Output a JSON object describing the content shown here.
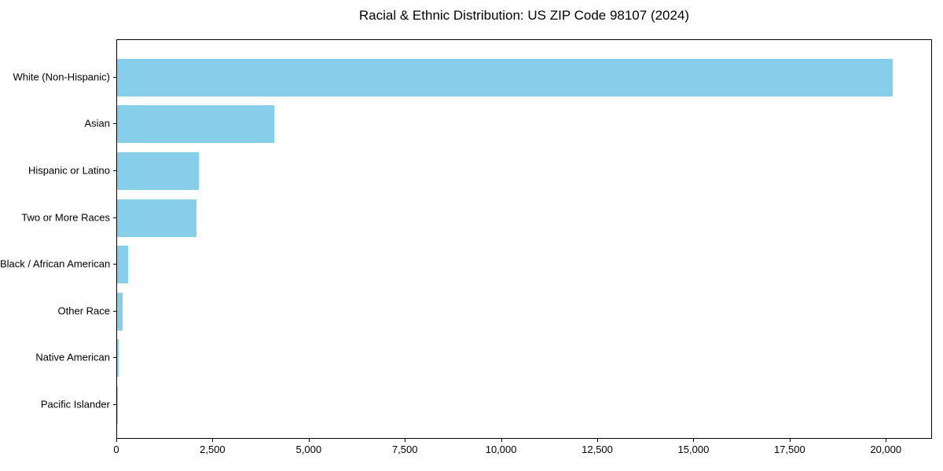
{
  "title": "Racial & Ethnic Distribution: US ZIP Code 98107 (2024)",
  "chart_data": {
    "type": "bar",
    "orientation": "horizontal",
    "title": "Racial & Ethnic Distribution: US ZIP Code 98107 (2024)",
    "xlabel": "",
    "ylabel": "",
    "categories": [
      "White (Non-Hispanic)",
      "Asian",
      "Hispanic or Latino",
      "Two or More Races",
      "Black / African American",
      "Other Race",
      "Native American",
      "Pacific Islander"
    ],
    "values": [
      20150,
      4075,
      2115,
      2060,
      280,
      150,
      40,
      10
    ],
    "xlim": [
      0,
      21200
    ],
    "x_ticks": [
      0,
      2500,
      5000,
      7500,
      10000,
      12500,
      15000,
      17500,
      20000
    ],
    "x_tick_labels": [
      "0",
      "2,500",
      "5,000",
      "7,500",
      "10,000",
      "12,500",
      "15,000",
      "17,500",
      "20,000"
    ],
    "bar_color": "#87CEEB",
    "frame_color": "#000000",
    "text_color": "#000000",
    "grid": false,
    "legend": false
  }
}
